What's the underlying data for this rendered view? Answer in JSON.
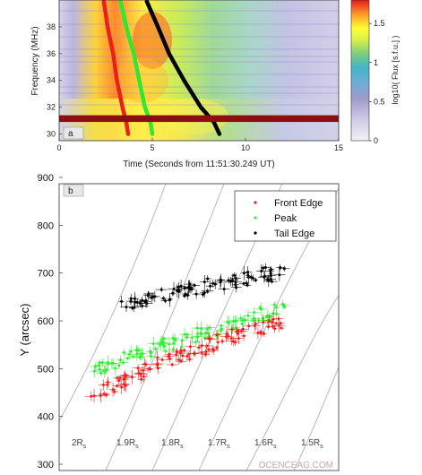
{
  "chart_data": [
    {
      "panel_label": "a",
      "type": "heatmap",
      "xlabel": "Time (Seconds from 11:51:30.249 UT)",
      "ylabel": "Frequency (MHz)",
      "xlim": [
        0,
        15
      ],
      "ylim": [
        29.5,
        40
      ],
      "x_ticks": [
        "0",
        "5",
        "10",
        "15"
      ],
      "y_ticks": [
        "30",
        "32",
        "34",
        "36",
        "38"
      ],
      "colorbar": {
        "label": "log10( Flux [s.f.u.] )",
        "range": [
          0,
          1.8
        ],
        "ticks": [
          "0",
          "0.5",
          "1",
          "1.5"
        ],
        "colors": [
          "#f2f0f7",
          "#bcbddc",
          "#6baed6",
          "#41b6c4",
          "#a1d99b",
          "#ffff33",
          "#fe9929",
          "#e31a1c"
        ]
      },
      "series": [
        {
          "name": "Front Edge",
          "color": "#e8221a",
          "points": [
            [
              2.4,
              39.9
            ],
            [
              2.6,
              38
            ],
            [
              2.9,
              36
            ],
            [
              3.1,
              34
            ],
            [
              3.4,
              32
            ],
            [
              3.6,
              30.9
            ],
            [
              3.7,
              30
            ]
          ]
        },
        {
          "name": "Peak",
          "color": "#33e633",
          "points": [
            [
              3.3,
              39.9
            ],
            [
              3.6,
              38
            ],
            [
              4.0,
              36
            ],
            [
              4.3,
              34
            ],
            [
              4.6,
              32
            ],
            [
              4.9,
              30.9
            ],
            [
              5.0,
              30
            ]
          ]
        },
        {
          "name": "Tail Edge",
          "color": "#000000",
          "points": [
            [
              4.7,
              39.9
            ],
            [
              5.3,
              38
            ],
            [
              5.9,
              36
            ],
            [
              6.7,
              34
            ],
            [
              7.6,
              32
            ],
            [
              8.3,
              30.9
            ],
            [
              8.6,
              30
            ]
          ]
        }
      ],
      "highlight_band_mhz": [
        31.0,
        31.3
      ]
    },
    {
      "panel_label": "b",
      "type": "scatter",
      "ylabel": "Y (arcsec)",
      "ylim": [
        300,
        900
      ],
      "y_ticks": [
        "300",
        "400",
        "500",
        "600",
        "700",
        "800",
        "900"
      ],
      "x_tick_labels_visible": false,
      "legend": {
        "placement": "top-right",
        "entries": [
          "Front Edge",
          "Peak",
          "Tail Edge"
        ]
      },
      "series": [
        {
          "name": "Front Edge",
          "color": "#ee2222",
          "points": [
            [
              0.55,
              450
            ],
            [
              0.6,
              462
            ],
            [
              0.65,
              475
            ],
            [
              0.7,
              490
            ],
            [
              0.75,
              505
            ],
            [
              0.8,
              518
            ],
            [
              0.85,
              532
            ],
            [
              0.9,
              545
            ],
            [
              0.95,
              556
            ],
            [
              1.0,
              568
            ],
            [
              1.05,
              580
            ],
            [
              1.1,
              590
            ],
            [
              1.15,
              600
            ]
          ]
        },
        {
          "name": "Peak",
          "color": "#33ee33",
          "points": [
            [
              0.55,
              492
            ],
            [
              0.6,
              505
            ],
            [
              0.65,
              515
            ],
            [
              0.7,
              528
            ],
            [
              0.75,
              540
            ],
            [
              0.8,
              552
            ],
            [
              0.85,
              563
            ],
            [
              0.9,
              575
            ],
            [
              0.95,
              585
            ],
            [
              1.0,
              596
            ],
            [
              1.05,
              606
            ],
            [
              1.1,
              617
            ],
            [
              1.15,
              626
            ]
          ]
        },
        {
          "name": "Tail Edge",
          "color": "#000000",
          "points": [
            [
              0.65,
              628
            ],
            [
              0.7,
              638
            ],
            [
              0.75,
              647
            ],
            [
              0.8,
              656
            ],
            [
              0.85,
              663
            ],
            [
              0.9,
              670
            ],
            [
              0.95,
              677
            ],
            [
              1.0,
              683
            ],
            [
              1.05,
              690
            ],
            [
              1.1,
              697
            ],
            [
              1.15,
              703
            ]
          ]
        }
      ],
      "radius_labels": [
        "2R",
        "1.9R",
        "1.8R",
        "1.7R",
        "1.6R",
        "1.5R"
      ],
      "radius_subscript": "s"
    }
  ],
  "watermark": "OCENCEAG.COM"
}
